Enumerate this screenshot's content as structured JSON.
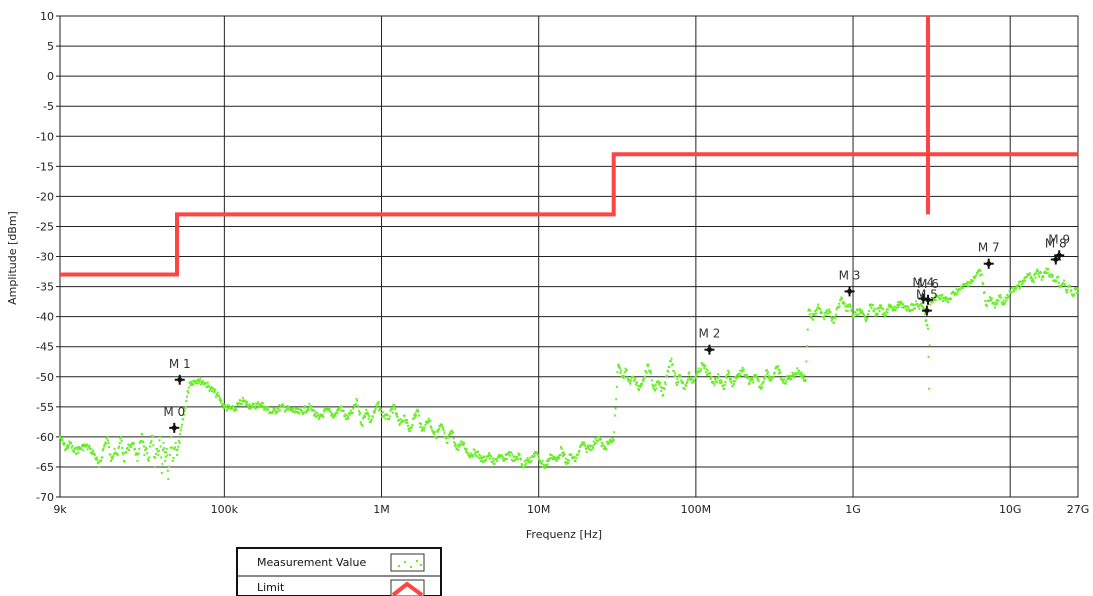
{
  "chart_data": {
    "type": "scatter",
    "title": "",
    "xlabel": "Frequenz [Hz]",
    "ylabel": "Amplitude [dBm]",
    "x_scale": "log",
    "xlim": [
      9000,
      27000000000
    ],
    "ylim": [
      -70,
      10
    ],
    "grid": true,
    "x_ticks": [
      {
        "value": 9000,
        "label": "9k"
      },
      {
        "value": 100000,
        "label": "100k"
      },
      {
        "value": 1000000,
        "label": "1M"
      },
      {
        "value": 10000000,
        "label": "10M"
      },
      {
        "value": 100000000,
        "label": "100M"
      },
      {
        "value": 1000000000,
        "label": "1G"
      },
      {
        "value": 10000000000,
        "label": "10G"
      },
      {
        "value": 27000000000,
        "label": "27G"
      }
    ],
    "y_ticks": [
      10,
      5,
      0,
      -5,
      -10,
      -15,
      -20,
      -25,
      -30,
      -35,
      -40,
      -45,
      -50,
      -55,
      -60,
      -65,
      -70
    ],
    "legend": {
      "position": "bottom-left",
      "entries": [
        {
          "label": "Measurement Value",
          "color": "#66ee22",
          "style": "dots"
        },
        {
          "label": "Limit",
          "color": "#ff4444",
          "style": "line"
        }
      ]
    },
    "series": [
      {
        "name": "Limit",
        "color": "#ff4444",
        "segments": [
          [
            [
              9000,
              -33
            ],
            [
              50000,
              -33
            ],
            [
              50000,
              -23
            ],
            [
              30000000,
              -23
            ],
            [
              30000000,
              -13
            ],
            [
              27000000000,
              -13
            ]
          ],
          [
            [
              3000000000,
              10
            ],
            [
              3000000000,
              -23
            ]
          ]
        ]
      },
      {
        "name": "Measurement Value",
        "color": "#66ee22",
        "points": [
          [
            9000,
            -60
          ],
          [
            9800,
            -62
          ],
          [
            10500,
            -61
          ],
          [
            11000,
            -62.5
          ],
          [
            12000,
            -62
          ],
          [
            13000,
            -61.5
          ],
          [
            14000,
            -62
          ],
          [
            15000,
            -63
          ],
          [
            16000,
            -65
          ],
          [
            17000,
            -62
          ],
          [
            18000,
            -60
          ],
          [
            19000,
            -64
          ],
          [
            20000,
            -62
          ],
          [
            21000,
            -63
          ],
          [
            22000,
            -60
          ],
          [
            23000,
            -64
          ],
          [
            24000,
            -62
          ],
          [
            25000,
            -61.5
          ],
          [
            26000,
            -61
          ],
          [
            27000,
            -62
          ],
          [
            28000,
            -64
          ],
          [
            29000,
            -61
          ],
          [
            30000,
            -59.5
          ],
          [
            31000,
            -63
          ],
          [
            32000,
            -62
          ],
          [
            33000,
            -64
          ],
          [
            34000,
            -61
          ],
          [
            35000,
            -60
          ],
          [
            36000,
            -65
          ],
          [
            37000,
            -62
          ],
          [
            38000,
            -63
          ],
          [
            39000,
            -60
          ],
          [
            40000,
            -66
          ],
          [
            41000,
            -61
          ],
          [
            42000,
            -64
          ],
          [
            43000,
            -62
          ],
          [
            44000,
            -67
          ],
          [
            45000,
            -63
          ],
          [
            46000,
            -60
          ],
          [
            47000,
            -64
          ],
          [
            48000,
            -62
          ],
          [
            49000,
            -61
          ],
          [
            50000,
            -63
          ],
          [
            60000,
            -51
          ],
          [
            68000,
            -50.5
          ],
          [
            75000,
            -51
          ],
          [
            82000,
            -52
          ],
          [
            90000,
            -53
          ],
          [
            100000,
            -55
          ],
          [
            115000,
            -55.5
          ],
          [
            130000,
            -54
          ],
          [
            150000,
            -55
          ],
          [
            170000,
            -54.5
          ],
          [
            200000,
            -56
          ],
          [
            230000,
            -55
          ],
          [
            260000,
            -55.5
          ],
          [
            300000,
            -56
          ],
          [
            350000,
            -55
          ],
          [
            400000,
            -57
          ],
          [
            450000,
            -55.5
          ],
          [
            500000,
            -56.5
          ],
          [
            550000,
            -55
          ],
          [
            600000,
            -57
          ],
          [
            650000,
            -56
          ],
          [
            700000,
            -54
          ],
          [
            750000,
            -58
          ],
          [
            800000,
            -55.5
          ],
          [
            850000,
            -57.5
          ],
          [
            900000,
            -56
          ],
          [
            950000,
            -54.5
          ],
          [
            1000000,
            -56
          ],
          [
            1100000,
            -57
          ],
          [
            1200000,
            -55
          ],
          [
            1300000,
            -58
          ],
          [
            1400000,
            -56.5
          ],
          [
            1500000,
            -59
          ],
          [
            1600000,
            -57
          ],
          [
            1700000,
            -55.5
          ],
          [
            1800000,
            -59
          ],
          [
            1900000,
            -58
          ],
          [
            2000000,
            -57
          ],
          [
            2200000,
            -60
          ],
          [
            2400000,
            -58
          ],
          [
            2600000,
            -61
          ],
          [
            2800000,
            -59
          ],
          [
            3000000,
            -62
          ],
          [
            3300000,
            -61
          ],
          [
            3600000,
            -63
          ],
          [
            4000000,
            -62.5
          ],
          [
            4400000,
            -64
          ],
          [
            4800000,
            -63
          ],
          [
            5200000,
            -64.5
          ],
          [
            5600000,
            -63
          ],
          [
            6000000,
            -64
          ],
          [
            6500000,
            -62.5
          ],
          [
            7000000,
            -64
          ],
          [
            7500000,
            -63
          ],
          [
            8000000,
            -65
          ],
          [
            8500000,
            -63.5
          ],
          [
            9000000,
            -64
          ],
          [
            9500000,
            -62.5
          ],
          [
            10000000,
            -63.5
          ],
          [
            11000000,
            -65
          ],
          [
            12000000,
            -63
          ],
          [
            13000000,
            -64
          ],
          [
            14000000,
            -62
          ],
          [
            15000000,
            -64.5
          ],
          [
            16000000,
            -63
          ],
          [
            17000000,
            -64
          ],
          [
            18000000,
            -62.5
          ],
          [
            19000000,
            -61
          ],
          [
            20000000,
            -62
          ],
          [
            22000000,
            -61.5
          ],
          [
            24000000,
            -60
          ],
          [
            26000000,
            -62
          ],
          [
            28000000,
            -61
          ],
          [
            30000000,
            -60.5
          ],
          [
            32000000,
            -48
          ],
          [
            34000000,
            -50
          ],
          [
            36000000,
            -49
          ],
          [
            38000000,
            -51
          ],
          [
            40000000,
            -50
          ],
          [
            43000000,
            -52
          ],
          [
            46000000,
            -50.5
          ],
          [
            50000000,
            -48
          ],
          [
            54000000,
            -52
          ],
          [
            58000000,
            -51
          ],
          [
            62000000,
            -53
          ],
          [
            66000000,
            -49
          ],
          [
            70000000,
            -47
          ],
          [
            75000000,
            -51
          ],
          [
            80000000,
            -50
          ],
          [
            85000000,
            -52
          ],
          [
            90000000,
            -49.5
          ],
          [
            95000000,
            -51
          ],
          [
            100000000,
            -50
          ],
          [
            110000000,
            -48
          ],
          [
            120000000,
            -49.5
          ],
          [
            130000000,
            -51
          ],
          [
            140000000,
            -50
          ],
          [
            150000000,
            -52
          ],
          [
            160000000,
            -49
          ],
          [
            170000000,
            -51.5
          ],
          [
            180000000,
            -50
          ],
          [
            200000000,
            -49
          ],
          [
            220000000,
            -51
          ],
          [
            240000000,
            -50
          ],
          [
            260000000,
            -52
          ],
          [
            280000000,
            -49
          ],
          [
            300000000,
            -50.5
          ],
          [
            330000000,
            -48.5
          ],
          [
            360000000,
            -51
          ],
          [
            400000000,
            -50
          ],
          [
            450000000,
            -49
          ],
          [
            500000000,
            -50.5
          ],
          [
            520000000,
            -39
          ],
          [
            560000000,
            -40.5
          ],
          [
            600000000,
            -38
          ],
          [
            650000000,
            -40
          ],
          [
            700000000,
            -39
          ],
          [
            750000000,
            -41
          ],
          [
            800000000,
            -38.5
          ],
          [
            850000000,
            -37
          ],
          [
            900000000,
            -39
          ],
          [
            950000000,
            -38
          ],
          [
            1000000000,
            -40
          ],
          [
            1100000000,
            -39
          ],
          [
            1200000000,
            -40.5
          ],
          [
            1300000000,
            -38
          ],
          [
            1400000000,
            -39.5
          ],
          [
            1500000000,
            -38.5
          ],
          [
            1600000000,
            -40
          ],
          [
            1700000000,
            -38
          ],
          [
            1800000000,
            -39
          ],
          [
            1900000000,
            -38.5
          ],
          [
            2000000000,
            -37.5
          ],
          [
            2200000000,
            -39
          ],
          [
            2500000000,
            -38
          ],
          [
            2800000000,
            -38.5
          ],
          [
            3000000000,
            -42
          ],
          [
            3050000000,
            -52
          ],
          [
            3100000000,
            -38
          ],
          [
            3300000000,
            -37
          ],
          [
            3600000000,
            -36.5
          ],
          [
            4000000000,
            -37.5
          ],
          [
            4400000000,
            -36
          ],
          [
            4800000000,
            -35.5
          ],
          [
            5300000000,
            -34.5
          ],
          [
            5800000000,
            -34
          ],
          [
            6300000000,
            -32.5
          ],
          [
            6600000000,
            -33
          ],
          [
            7000000000,
            -38
          ],
          [
            7500000000,
            -37
          ],
          [
            8000000000,
            -38.5
          ],
          [
            8500000000,
            -36.5
          ],
          [
            9000000000,
            -38
          ],
          [
            9500000000,
            -37
          ],
          [
            10000000000,
            -36
          ],
          [
            11000000000,
            -35
          ],
          [
            12000000000,
            -34.5
          ],
          [
            13000000000,
            -33
          ],
          [
            14000000000,
            -34
          ],
          [
            15000000000,
            -32.5
          ],
          [
            16000000000,
            -33.5
          ],
          [
            17000000000,
            -32
          ],
          [
            18000000000,
            -33
          ],
          [
            19000000000,
            -34
          ],
          [
            20000000000,
            -33.5
          ],
          [
            21000000000,
            -35
          ],
          [
            22000000000,
            -34
          ],
          [
            23000000000,
            -36
          ],
          [
            24000000000,
            -35
          ],
          [
            25000000000,
            -36.5
          ],
          [
            26000000000,
            -35.5
          ],
          [
            27000000000,
            -36
          ]
        ]
      }
    ],
    "markers": [
      {
        "label": "M 0",
        "x": 48000,
        "y": -58.5,
        "label_pos": "above"
      },
      {
        "label": "M 1",
        "x": 52000,
        "y": -50.5,
        "label_pos": "above"
      },
      {
        "label": "M 2",
        "x": 122000000,
        "y": -45.5,
        "label_pos": "above"
      },
      {
        "label": "M 3",
        "x": 950000000,
        "y": -35.8,
        "label_pos": "above"
      },
      {
        "label": "M 4",
        "x": 2800000000,
        "y": -37,
        "label_pos": "above"
      },
      {
        "label": "M 5",
        "x": 2950000000,
        "y": -39,
        "label_pos": "above"
      },
      {
        "label": "M 6",
        "x": 3000000000,
        "y": -37.2,
        "label_pos": "above"
      },
      {
        "label": "M 7",
        "x": 7300000000,
        "y": -31.2,
        "label_pos": "above"
      },
      {
        "label": "M 8",
        "x": 19500000000,
        "y": -30.5,
        "label_pos": "above"
      },
      {
        "label": "M 9",
        "x": 20500000000,
        "y": -29.8,
        "label_pos": "above"
      }
    ]
  }
}
